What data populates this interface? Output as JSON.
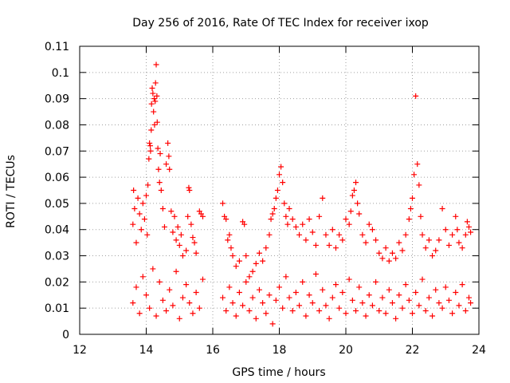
{
  "chart_data": {
    "type": "scatter",
    "title": "Day 256 of 2016, Rate Of TEC Index for receiver ixop",
    "xlabel": "GPS time / hours",
    "ylabel": "ROTI / TECUs",
    "xlim": [
      12,
      24
    ],
    "ylim": [
      0,
      0.11
    ],
    "x_ticks": [
      12,
      14,
      16,
      18,
      20,
      22,
      24
    ],
    "x_tick_labels": [
      "12",
      "14",
      "16",
      "18",
      "20",
      "22",
      "24"
    ],
    "y_ticks": [
      0,
      0.01,
      0.02,
      0.03,
      0.04,
      0.05,
      0.06,
      0.07,
      0.08,
      0.09,
      0.1,
      0.11
    ],
    "y_tick_labels": [
      "0",
      "0.01",
      "0.02",
      "0.03",
      "0.04",
      "0.05",
      "0.06",
      "0.07",
      "0.08",
      "0.09",
      "0.1",
      "0.11"
    ],
    "grid": true,
    "marker": "+",
    "color": "#ff0000",
    "series": [
      {
        "name": "ROTI",
        "points": [
          [
            13.6,
            0.042
          ],
          [
            13.62,
            0.055
          ],
          [
            13.65,
            0.048
          ],
          [
            13.7,
            0.035
          ],
          [
            13.75,
            0.052
          ],
          [
            13.8,
            0.046
          ],
          [
            13.85,
            0.04
          ],
          [
            13.9,
            0.05
          ],
          [
            13.95,
            0.044
          ],
          [
            14.0,
            0.053
          ],
          [
            14.03,
            0.038
          ],
          [
            14.05,
            0.057
          ],
          [
            14.08,
            0.067
          ],
          [
            14.1,
            0.073
          ],
          [
            14.12,
            0.072
          ],
          [
            14.13,
            0.07
          ],
          [
            14.15,
            0.078
          ],
          [
            14.16,
            0.088
          ],
          [
            14.18,
            0.094
          ],
          [
            14.2,
            0.092
          ],
          [
            14.22,
            0.085
          ],
          [
            14.24,
            0.09
          ],
          [
            14.25,
            0.08
          ],
          [
            14.27,
            0.089
          ],
          [
            14.28,
            0.096
          ],
          [
            14.3,
            0.103
          ],
          [
            14.32,
            0.091
          ],
          [
            14.33,
            0.081
          ],
          [
            14.35,
            0.071
          ],
          [
            14.37,
            0.063
          ],
          [
            14.4,
            0.058
          ],
          [
            14.42,
            0.069
          ],
          [
            14.45,
            0.055
          ],
          [
            14.5,
            0.048
          ],
          [
            14.55,
            0.041
          ],
          [
            14.6,
            0.065
          ],
          [
            14.65,
            0.073
          ],
          [
            14.68,
            0.068
          ],
          [
            14.7,
            0.063
          ],
          [
            14.75,
            0.047
          ],
          [
            14.8,
            0.039
          ],
          [
            14.85,
            0.045
          ],
          [
            14.9,
            0.036
          ],
          [
            14.95,
            0.041
          ],
          [
            15.0,
            0.034
          ],
          [
            15.05,
            0.038
          ],
          [
            15.1,
            0.03
          ],
          [
            15.2,
            0.032
          ],
          [
            15.25,
            0.045
          ],
          [
            15.28,
            0.056
          ],
          [
            15.3,
            0.055
          ],
          [
            15.35,
            0.042
          ],
          [
            15.4,
            0.037
          ],
          [
            15.45,
            0.035
          ],
          [
            15.5,
            0.031
          ],
          [
            15.6,
            0.047
          ],
          [
            15.65,
            0.046
          ],
          [
            15.7,
            0.045
          ],
          [
            16.3,
            0.05
          ],
          [
            16.35,
            0.045
          ],
          [
            16.4,
            0.044
          ],
          [
            16.45,
            0.036
          ],
          [
            16.5,
            0.038
          ],
          [
            16.55,
            0.033
          ],
          [
            16.6,
            0.03
          ],
          [
            16.7,
            0.026
          ],
          [
            16.8,
            0.028
          ],
          [
            16.9,
            0.043
          ],
          [
            16.95,
            0.042
          ],
          [
            17.0,
            0.03
          ],
          [
            17.1,
            0.022
          ],
          [
            17.2,
            0.024
          ],
          [
            17.3,
            0.027
          ],
          [
            17.4,
            0.031
          ],
          [
            17.5,
            0.028
          ],
          [
            17.6,
            0.033
          ],
          [
            17.7,
            0.038
          ],
          [
            17.75,
            0.044
          ],
          [
            17.8,
            0.046
          ],
          [
            17.85,
            0.048
          ],
          [
            17.9,
            0.052
          ],
          [
            17.95,
            0.055
          ],
          [
            18.0,
            0.061
          ],
          [
            18.05,
            0.064
          ],
          [
            18.1,
            0.058
          ],
          [
            18.15,
            0.05
          ],
          [
            18.2,
            0.045
          ],
          [
            18.25,
            0.042
          ],
          [
            18.3,
            0.048
          ],
          [
            18.4,
            0.044
          ],
          [
            18.5,
            0.041
          ],
          [
            18.6,
            0.038
          ],
          [
            18.7,
            0.042
          ],
          [
            18.8,
            0.036
          ],
          [
            18.9,
            0.044
          ],
          [
            19.0,
            0.039
          ],
          [
            19.1,
            0.034
          ],
          [
            19.2,
            0.045
          ],
          [
            19.3,
            0.052
          ],
          [
            19.4,
            0.038
          ],
          [
            19.5,
            0.034
          ],
          [
            19.6,
            0.04
          ],
          [
            19.7,
            0.033
          ],
          [
            19.8,
            0.038
          ],
          [
            19.9,
            0.036
          ],
          [
            20.0,
            0.044
          ],
          [
            20.1,
            0.042
          ],
          [
            20.15,
            0.047
          ],
          [
            20.2,
            0.053
          ],
          [
            20.25,
            0.055
          ],
          [
            20.3,
            0.058
          ],
          [
            20.35,
            0.05
          ],
          [
            20.4,
            0.046
          ],
          [
            20.5,
            0.038
          ],
          [
            20.6,
            0.035
          ],
          [
            20.7,
            0.042
          ],
          [
            20.8,
            0.04
          ],
          [
            20.9,
            0.036
          ],
          [
            21.0,
            0.031
          ],
          [
            21.1,
            0.029
          ],
          [
            21.2,
            0.033
          ],
          [
            21.3,
            0.028
          ],
          [
            21.4,
            0.031
          ],
          [
            21.5,
            0.029
          ],
          [
            21.6,
            0.035
          ],
          [
            21.7,
            0.032
          ],
          [
            21.8,
            0.038
          ],
          [
            21.9,
            0.044
          ],
          [
            21.95,
            0.048
          ],
          [
            22.0,
            0.052
          ],
          [
            22.05,
            0.061
          ],
          [
            22.1,
            0.091
          ],
          [
            22.15,
            0.065
          ],
          [
            22.2,
            0.057
          ],
          [
            22.25,
            0.045
          ],
          [
            22.3,
            0.038
          ],
          [
            22.4,
            0.033
          ],
          [
            22.5,
            0.036
          ],
          [
            22.6,
            0.03
          ],
          [
            22.7,
            0.032
          ],
          [
            22.8,
            0.036
          ],
          [
            22.9,
            0.048
          ],
          [
            23.0,
            0.04
          ],
          [
            23.1,
            0.034
          ],
          [
            23.2,
            0.038
          ],
          [
            23.3,
            0.045
          ],
          [
            23.35,
            0.04
          ],
          [
            23.4,
            0.035
          ],
          [
            23.5,
            0.033
          ],
          [
            23.6,
            0.038
          ],
          [
            23.65,
            0.043
          ],
          [
            23.7,
            0.041
          ],
          [
            23.75,
            0.039
          ],
          [
            13.6,
            0.012
          ],
          [
            13.7,
            0.018
          ],
          [
            13.8,
            0.008
          ],
          [
            13.9,
            0.022
          ],
          [
            14.0,
            0.015
          ],
          [
            14.1,
            0.01
          ],
          [
            14.2,
            0.025
          ],
          [
            14.3,
            0.007
          ],
          [
            14.4,
            0.02
          ],
          [
            14.5,
            0.013
          ],
          [
            14.6,
            0.009
          ],
          [
            14.7,
            0.017
          ],
          [
            14.8,
            0.011
          ],
          [
            14.9,
            0.024
          ],
          [
            15.0,
            0.006
          ],
          [
            15.1,
            0.014
          ],
          [
            15.2,
            0.019
          ],
          [
            15.3,
            0.012
          ],
          [
            15.4,
            0.008
          ],
          [
            15.5,
            0.016
          ],
          [
            15.6,
            0.01
          ],
          [
            15.7,
            0.021
          ],
          [
            16.3,
            0.014
          ],
          [
            16.4,
            0.009
          ],
          [
            16.5,
            0.018
          ],
          [
            16.6,
            0.012
          ],
          [
            16.7,
            0.007
          ],
          [
            16.8,
            0.016
          ],
          [
            16.9,
            0.011
          ],
          [
            17.0,
            0.02
          ],
          [
            17.1,
            0.009
          ],
          [
            17.2,
            0.014
          ],
          [
            17.3,
            0.006
          ],
          [
            17.4,
            0.017
          ],
          [
            17.5,
            0.012
          ],
          [
            17.6,
            0.008
          ],
          [
            17.7,
            0.015
          ],
          [
            17.8,
            0.004
          ],
          [
            17.9,
            0.013
          ],
          [
            18.0,
            0.018
          ],
          [
            18.1,
            0.01
          ],
          [
            18.2,
            0.022
          ],
          [
            18.3,
            0.014
          ],
          [
            18.4,
            0.009
          ],
          [
            18.5,
            0.016
          ],
          [
            18.6,
            0.011
          ],
          [
            18.7,
            0.02
          ],
          [
            18.8,
            0.007
          ],
          [
            18.9,
            0.015
          ],
          [
            19.0,
            0.012
          ],
          [
            19.1,
            0.023
          ],
          [
            19.2,
            0.009
          ],
          [
            19.3,
            0.017
          ],
          [
            19.4,
            0.011
          ],
          [
            19.5,
            0.006
          ],
          [
            19.6,
            0.014
          ],
          [
            19.7,
            0.019
          ],
          [
            19.8,
            0.01
          ],
          [
            19.9,
            0.016
          ],
          [
            20.0,
            0.008
          ],
          [
            20.1,
            0.021
          ],
          [
            20.2,
            0.013
          ],
          [
            20.3,
            0.009
          ],
          [
            20.4,
            0.018
          ],
          [
            20.5,
            0.012
          ],
          [
            20.6,
            0.007
          ],
          [
            20.7,
            0.015
          ],
          [
            20.8,
            0.011
          ],
          [
            20.9,
            0.02
          ],
          [
            21.0,
            0.009
          ],
          [
            21.1,
            0.014
          ],
          [
            21.2,
            0.008
          ],
          [
            21.3,
            0.017
          ],
          [
            21.4,
            0.012
          ],
          [
            21.5,
            0.006
          ],
          [
            21.6,
            0.015
          ],
          [
            21.7,
            0.01
          ],
          [
            21.8,
            0.019
          ],
          [
            21.9,
            0.013
          ],
          [
            22.0,
            0.008
          ],
          [
            22.1,
            0.016
          ],
          [
            22.2,
            0.011
          ],
          [
            22.3,
            0.021
          ],
          [
            22.4,
            0.009
          ],
          [
            22.5,
            0.014
          ],
          [
            22.6,
            0.007
          ],
          [
            22.7,
            0.017
          ],
          [
            22.8,
            0.012
          ],
          [
            22.9,
            0.01
          ],
          [
            23.0,
            0.018
          ],
          [
            23.1,
            0.013
          ],
          [
            23.2,
            0.008
          ],
          [
            23.3,
            0.016
          ],
          [
            23.4,
            0.011
          ],
          [
            23.5,
            0.019
          ],
          [
            23.6,
            0.009
          ],
          [
            23.7,
            0.014
          ],
          [
            23.75,
            0.012
          ]
        ]
      }
    ]
  }
}
